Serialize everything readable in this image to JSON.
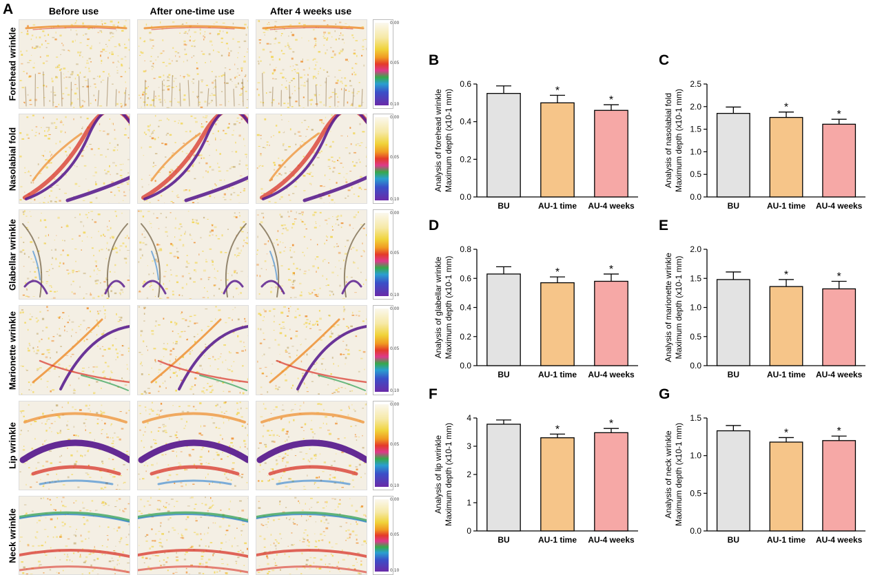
{
  "figure": {
    "panel_a": {
      "letter": "A",
      "columns": [
        "Before use",
        "After one-time use",
        "After 4 weeks use"
      ],
      "rows": [
        "Forehead wrinkle",
        "Nasolabial fold",
        "Glabellar wrinkle",
        "Marionette wrinkle",
        "Lip wrinkle",
        "Neck wrinkle"
      ],
      "scale_ticks": [
        "0.00",
        "0.05",
        "0.10"
      ],
      "palette": {
        "skin": "#f4efe4",
        "yellow": "#f2d44a",
        "orange": "#ee8b28",
        "red": "#d8342a",
        "green": "#2f9f55",
        "blue": "#2a7fd0",
        "purple": "#5b1f8f"
      }
    }
  },
  "chart_data": [
    {
      "letter": "B",
      "type": "bar",
      "categories": [
        "BU",
        "AU-1 time",
        "AU-4 weeks"
      ],
      "values": [
        0.55,
        0.5,
        0.46
      ],
      "errors": [
        0.04,
        0.04,
        0.03
      ],
      "significance": [
        "",
        "*",
        "*"
      ],
      "ylabel_1": "Analysis of forehead wrinkle",
      "ylabel_2": "Maximum depth (x10-1 mm)",
      "yticks": [
        "0.0",
        "0.2",
        "0.4",
        "0.6"
      ],
      "ylim": [
        0,
        0.6
      ],
      "colors": [
        "#e3e3e3",
        "#f6c589",
        "#f6a8a6"
      ]
    },
    {
      "letter": "C",
      "type": "bar",
      "categories": [
        "BU",
        "AU-1 time",
        "AU-4 weeks"
      ],
      "values": [
        1.85,
        1.76,
        1.61
      ],
      "errors": [
        0.14,
        0.12,
        0.11
      ],
      "significance": [
        "",
        "*",
        "*"
      ],
      "ylabel_1": "Analysis of nasolabial fold",
      "ylabel_2": "Maximum depth (x10-1 mm)",
      "yticks": [
        "0.0",
        "0.5",
        "1.0",
        "1.5",
        "2.0",
        "2.5"
      ],
      "ylim": [
        0,
        2.5
      ],
      "colors": [
        "#e3e3e3",
        "#f6c589",
        "#f6a8a6"
      ]
    },
    {
      "letter": "D",
      "type": "bar",
      "categories": [
        "BU",
        "AU-1 time",
        "AU-4 weeks"
      ],
      "values": [
        0.63,
        0.57,
        0.58
      ],
      "errors": [
        0.05,
        0.04,
        0.05
      ],
      "significance": [
        "",
        "*",
        "*"
      ],
      "ylabel_1": "Analysis of glabellar wrinkle",
      "ylabel_2": "Maximum depth (x10-1 mm)",
      "yticks": [
        "0.0",
        "0.2",
        "0.4",
        "0.6",
        "0.8"
      ],
      "ylim": [
        0,
        0.8
      ],
      "colors": [
        "#e3e3e3",
        "#f6c589",
        "#f6a8a6"
      ]
    },
    {
      "letter": "E",
      "type": "bar",
      "categories": [
        "BU",
        "AU-1 time",
        "AU-4 weeks"
      ],
      "values": [
        1.48,
        1.36,
        1.32
      ],
      "errors": [
        0.13,
        0.12,
        0.13
      ],
      "significance": [
        "",
        "*",
        "*"
      ],
      "ylabel_1": "Analysis of marionette wrinkle",
      "ylabel_2": "Maximum depth (x10-1 mm)",
      "yticks": [
        "0.0",
        "0.5",
        "1.0",
        "1.5",
        "2.0"
      ],
      "ylim": [
        0,
        2.0
      ],
      "colors": [
        "#e3e3e3",
        "#f6c589",
        "#f6a8a6"
      ]
    },
    {
      "letter": "F",
      "type": "bar",
      "categories": [
        "BU",
        "AU-1 time",
        "AU-4 weeks"
      ],
      "values": [
        3.78,
        3.3,
        3.48
      ],
      "errors": [
        0.15,
        0.13,
        0.15
      ],
      "significance": [
        "",
        "*",
        "*"
      ],
      "ylabel_1": "Analysis of lip wrinkle",
      "ylabel_2": "Maximum depth (x10-1 mm)",
      "yticks": [
        "0",
        "1",
        "2",
        "3",
        "4"
      ],
      "ylim": [
        0,
        4
      ],
      "colors": [
        "#e3e3e3",
        "#f6c589",
        "#f6a8a6"
      ]
    },
    {
      "letter": "G",
      "type": "bar",
      "categories": [
        "BU",
        "AU-1 time",
        "AU-4 weeks"
      ],
      "values": [
        1.33,
        1.18,
        1.2
      ],
      "errors": [
        0.07,
        0.06,
        0.06
      ],
      "significance": [
        "",
        "*",
        "*"
      ],
      "ylabel_1": "Analysis of neck wrinkle",
      "ylabel_2": "Maximum depth (x10-1 mm)",
      "yticks": [
        "0.0",
        "0.5",
        "1.0",
        "1.5"
      ],
      "ylim": [
        0,
        1.5
      ],
      "colors": [
        "#e3e3e3",
        "#f6c589",
        "#f6a8a6"
      ]
    }
  ]
}
